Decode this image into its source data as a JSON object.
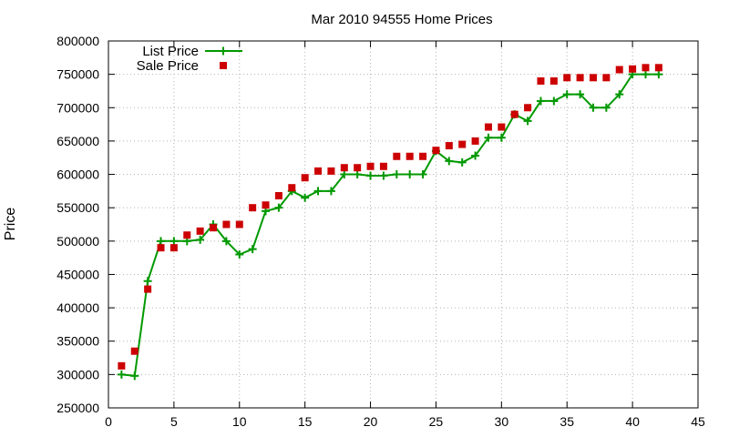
{
  "chart_data": {
    "type": "line",
    "title": "Mar 2010 94555 Home Prices",
    "xlabel": "",
    "ylabel": "Price",
    "xlim": [
      0,
      45
    ],
    "ylim": [
      250000,
      800000
    ],
    "xticks": [
      0,
      5,
      10,
      15,
      20,
      25,
      30,
      35,
      40,
      45
    ],
    "yticks": [
      250000,
      300000,
      350000,
      400000,
      450000,
      500000,
      550000,
      600000,
      650000,
      700000,
      750000,
      800000
    ],
    "grid": true,
    "legend_position": "top-left",
    "series": [
      {
        "name": "List Price",
        "style": "line-with-plus-markers",
        "color": "#009900",
        "x": [
          1,
          2,
          3,
          4,
          5,
          6,
          7,
          8,
          9,
          10,
          11,
          12,
          13,
          14,
          15,
          16,
          17,
          18,
          19,
          20,
          21,
          22,
          23,
          24,
          25,
          26,
          27,
          28,
          29,
          30,
          31,
          32,
          33,
          34,
          35,
          36,
          37,
          38,
          39,
          40,
          41,
          42
        ],
        "y": [
          300000,
          298000,
          440000,
          500000,
          500000,
          500000,
          502000,
          525000,
          500000,
          480000,
          488000,
          545000,
          550000,
          575000,
          565000,
          575000,
          575000,
          600000,
          600000,
          598000,
          598000,
          600000,
          600000,
          600000,
          635000,
          620000,
          618000,
          628000,
          655000,
          655000,
          690000,
          680000,
          710000,
          710000,
          720000,
          720000,
          700000,
          700000,
          720000,
          750000,
          750000,
          750000
        ]
      },
      {
        "name": "Sale Price",
        "style": "square-markers",
        "color": "#cc0000",
        "x": [
          1,
          2,
          3,
          4,
          5,
          6,
          7,
          8,
          9,
          10,
          11,
          12,
          13,
          14,
          15,
          16,
          17,
          18,
          19,
          20,
          21,
          22,
          23,
          24,
          25,
          26,
          27,
          28,
          29,
          30,
          31,
          32,
          33,
          34,
          35,
          36,
          37,
          38,
          39,
          40,
          41,
          42
        ],
        "y": [
          313000,
          335000,
          428000,
          490000,
          490000,
          509000,
          515000,
          520000,
          525000,
          525000,
          550000,
          554000,
          568000,
          580000,
          595000,
          605000,
          605000,
          610000,
          610000,
          612000,
          612000,
          627000,
          627000,
          627000,
          636000,
          643000,
          645000,
          650000,
          671000,
          671000,
          690000,
          700000,
          740000,
          740000,
          745000,
          745000,
          745000,
          745000,
          757000,
          758000,
          760000,
          760000
        ]
      }
    ]
  }
}
